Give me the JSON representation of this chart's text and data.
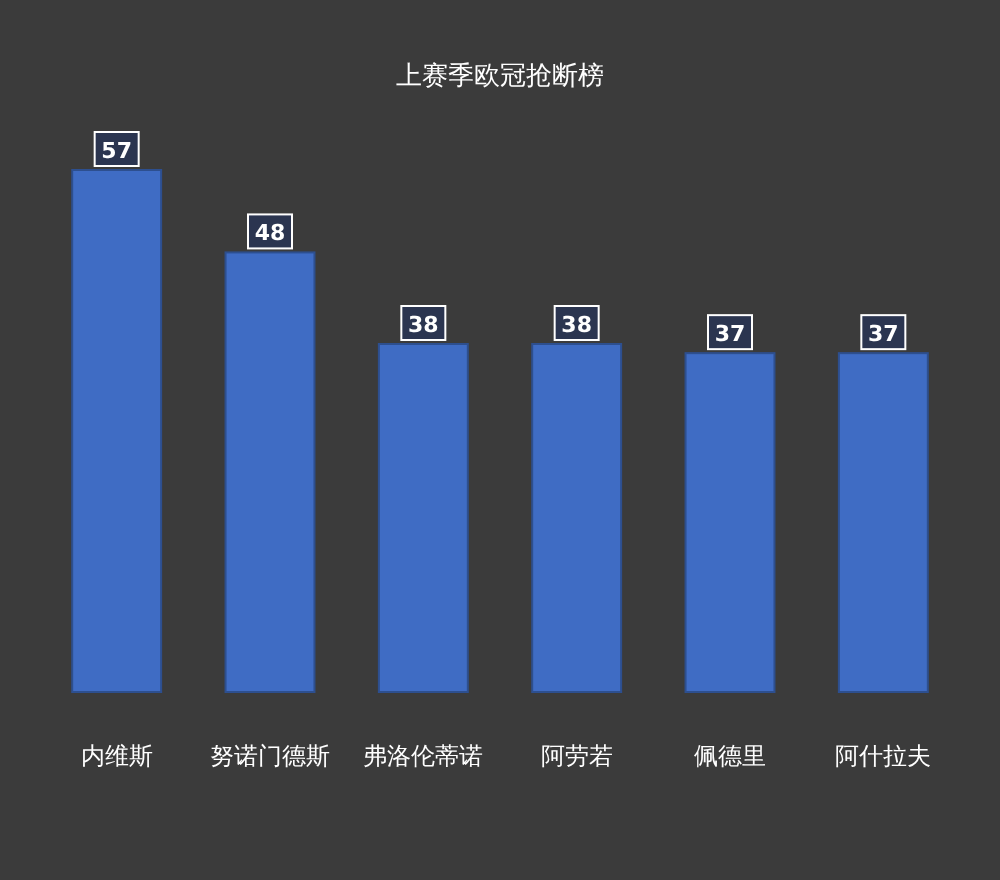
{
  "chart_data": {
    "type": "bar",
    "title": "上赛季欧冠抢断榜",
    "categories": [
      "内维斯",
      "努诺门德斯",
      "弗洛伦蒂诺",
      "阿劳若",
      "佩德里",
      "阿什拉夫"
    ],
    "values": [
      57,
      48,
      38,
      38,
      37,
      37
    ],
    "color": "#3f6cc4",
    "data_labels": true
  }
}
